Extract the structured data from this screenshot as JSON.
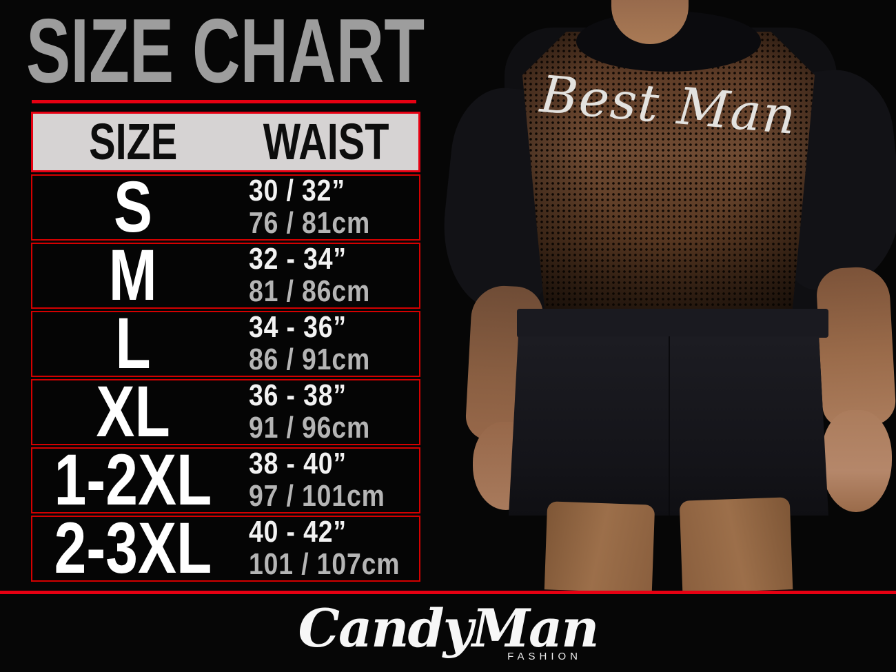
{
  "chart_data": {
    "type": "table",
    "title": "SIZE CHART",
    "columns": [
      "SIZE",
      "WAIST"
    ],
    "rows": [
      {
        "size": "S",
        "waist_inches": "30 / 32”",
        "waist_cm": "76 / 81cm"
      },
      {
        "size": "M",
        "waist_inches": "32 - 34”",
        "waist_cm": "81 / 86cm"
      },
      {
        "size": "L",
        "waist_inches": "34 - 36”",
        "waist_cm": "86 / 91cm"
      },
      {
        "size": "XL",
        "waist_inches": "36 - 38”",
        "waist_cm": "91 / 96cm"
      },
      {
        "size": "1-2XL",
        "waist_inches": "38 - 40”",
        "waist_cm": "97 / 101cm"
      },
      {
        "size": "2-3XL",
        "waist_inches": "40 - 42”",
        "waist_cm": "101 / 107cm"
      }
    ]
  },
  "photo": {
    "garment_text": "Best Man"
  },
  "brand": {
    "name": "CandyMan",
    "tagline": "FASHION"
  },
  "colors": {
    "accent_red": "#e60012",
    "title_gray": "#9d9d9d",
    "header_bg": "#d6d3d3",
    "waist_inches_white": "#f2f2f2",
    "waist_cm_gray": "#b5b5b5",
    "background_black": "#060606"
  }
}
